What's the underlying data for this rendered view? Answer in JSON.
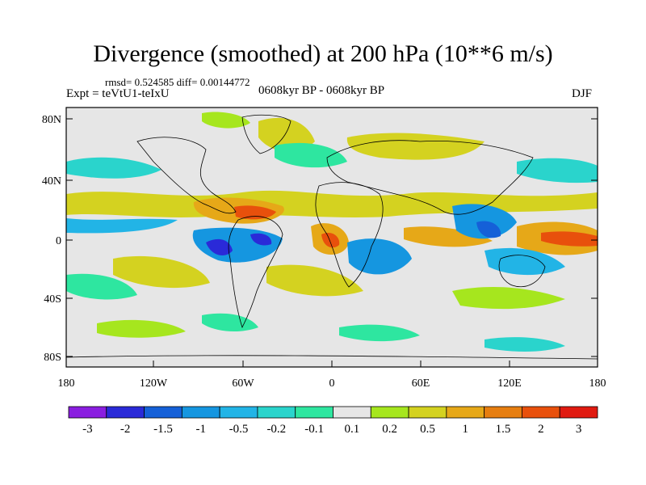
{
  "title": "Divergence (smoothed) at 200 hPa (10**6 m/s)",
  "stats": "rmsd= 0.524585 diff= 0.00144772",
  "expt": "Expt = teVtU1-teIxU",
  "period": "0608kyr BP - 0608kyr BP",
  "season": "DJF",
  "lat_ticks": [
    "80N",
    "40N",
    "0",
    "40S",
    "80S"
  ],
  "lon_ticks": [
    "180",
    "120W",
    "60W",
    "0",
    "60E",
    "120E",
    "180"
  ],
  "colorbar": {
    "labels": [
      "-3",
      "-2",
      "-1.5",
      "-1",
      "-0.5",
      "-0.2",
      "-0.1",
      "0.1",
      "0.2",
      "0.5",
      "1",
      "1.5",
      "2",
      "3"
    ],
    "colors": [
      "#8a1ee0",
      "#2a2ad8",
      "#1560d8",
      "#1596e0",
      "#22b4e6",
      "#2ad4cc",
      "#2ee6a0",
      "#e6e6e6",
      "#a6e61e",
      "#d4d220",
      "#e6a818",
      "#e67e10",
      "#e8500c",
      "#e01a10"
    ]
  }
}
